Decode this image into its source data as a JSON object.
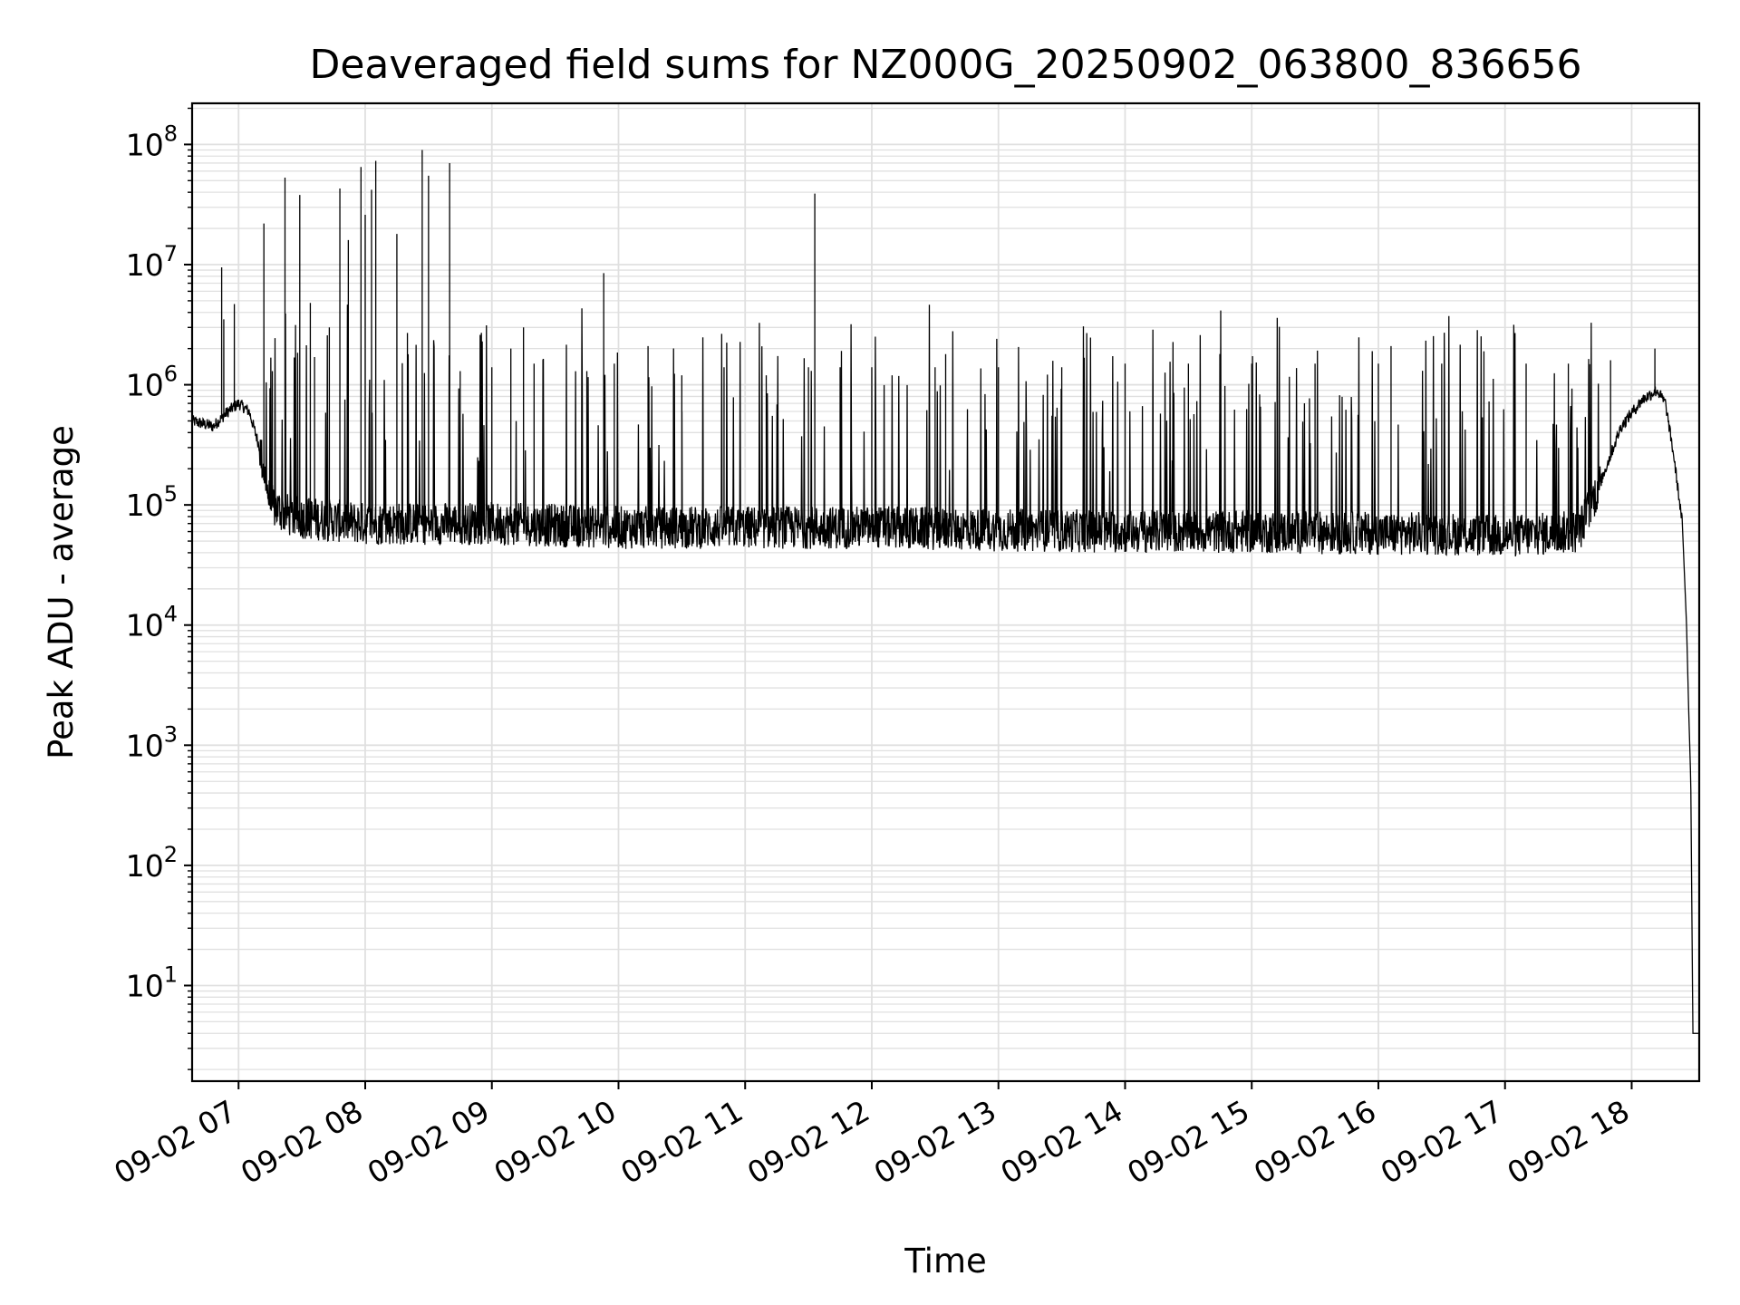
{
  "chart_data": {
    "type": "line",
    "title": "Deaveraged field sums for NZ000G_20250902_063800_836656",
    "xlabel": "Time",
    "ylabel": "Peak ADU - average",
    "yscale": "log",
    "ylim": [
      1.6,
      220000000.0
    ],
    "xlim": [
      "2025-09-02 06:38",
      "2025-09-02 18:32"
    ],
    "grid": true,
    "x_ticks": [
      {
        "time": "2025-09-02 07:00",
        "label": "09-02 07"
      },
      {
        "time": "2025-09-02 08:00",
        "label": "09-02 08"
      },
      {
        "time": "2025-09-02 09:00",
        "label": "09-02 09"
      },
      {
        "time": "2025-09-02 10:00",
        "label": "09-02 10"
      },
      {
        "time": "2025-09-02 11:00",
        "label": "09-02 11"
      },
      {
        "time": "2025-09-02 12:00",
        "label": "09-02 12"
      },
      {
        "time": "2025-09-02 13:00",
        "label": "09-02 13"
      },
      {
        "time": "2025-09-02 14:00",
        "label": "09-02 14"
      },
      {
        "time": "2025-09-02 15:00",
        "label": "09-02 15"
      },
      {
        "time": "2025-09-02 16:00",
        "label": "09-02 16"
      },
      {
        "time": "2025-09-02 17:00",
        "label": "09-02 17"
      },
      {
        "time": "2025-09-02 18:00",
        "label": "09-02 18"
      }
    ],
    "y_ticks": [
      {
        "value": 10,
        "base": "10",
        "exp": "1"
      },
      {
        "value": 100,
        "base": "10",
        "exp": "2"
      },
      {
        "value": 1000,
        "base": "10",
        "exp": "3"
      },
      {
        "value": 10000,
        "base": "10",
        "exp": "4"
      },
      {
        "value": 100000,
        "base": "10",
        "exp": "5"
      },
      {
        "value": 1000000,
        "base": "10",
        "exp": "6"
      },
      {
        "value": 10000000,
        "base": "10",
        "exp": "7"
      },
      {
        "value": 100000000,
        "base": "10",
        "exp": "8"
      }
    ],
    "series": [
      {
        "line_color": "#000000",
        "baseline": [
          [
            "2025-09-02 06:38",
            500000
          ],
          [
            "2025-09-02 06:48",
            450000
          ],
          [
            "2025-09-02 06:55",
            600000
          ],
          [
            "2025-09-02 07:00",
            700000
          ],
          [
            "2025-09-02 07:05",
            600000
          ],
          [
            "2025-09-02 07:10",
            300000
          ],
          [
            "2025-09-02 07:15",
            100000
          ],
          [
            "2025-09-02 07:25",
            80000
          ],
          [
            "2025-09-02 08:00",
            70000
          ],
          [
            "2025-09-02 09:00",
            70000
          ],
          [
            "2025-09-02 10:00",
            65000
          ],
          [
            "2025-09-02 11:00",
            65000
          ],
          [
            "2025-09-02 12:00",
            65000
          ],
          [
            "2025-09-02 13:00",
            62000
          ],
          [
            "2025-09-02 14:00",
            60000
          ],
          [
            "2025-09-02 15:00",
            60000
          ],
          [
            "2025-09-02 16:00",
            58000
          ],
          [
            "2025-09-02 16:30",
            58000
          ],
          [
            "2025-09-02 17:00",
            55000
          ],
          [
            "2025-09-02 17:35",
            60000
          ],
          [
            "2025-09-02 17:45",
            150000
          ],
          [
            "2025-09-02 17:55",
            450000
          ],
          [
            "2025-09-02 18:05",
            750000
          ],
          [
            "2025-09-02 18:12",
            900000
          ],
          [
            "2025-09-02 18:16",
            700000
          ],
          [
            "2025-09-02 18:20",
            250000
          ],
          [
            "2025-09-02 18:24",
            70000
          ],
          [
            "2025-09-02 18:26",
            10000
          ],
          [
            "2025-09-02 18:27",
            2000
          ],
          [
            "2025-09-02 18:28",
            500
          ],
          [
            "2025-09-02 18:29",
            4
          ],
          [
            "2025-09-02 18:32",
            4
          ]
        ],
        "spikes": [
          [
            "2025-09-02 06:52",
            9500000
          ],
          [
            "2025-09-02 06:53",
            3500000
          ],
          [
            "2025-09-02 06:58",
            4700000
          ],
          [
            "2025-09-02 07:12",
            22000000
          ],
          [
            "2025-09-02 07:16",
            1300000
          ],
          [
            "2025-09-02 07:22",
            53000000
          ],
          [
            "2025-09-02 07:29",
            38000000
          ],
          [
            "2025-09-02 07:34",
            4800000
          ],
          [
            "2025-09-02 07:36",
            1700000
          ],
          [
            "2025-09-02 07:43",
            3000000
          ],
          [
            "2025-09-02 07:48",
            43000000
          ],
          [
            "2025-09-02 07:52",
            16000000
          ],
          [
            "2025-09-02 07:58",
            65000000
          ],
          [
            "2025-09-02 08:00",
            26000000
          ],
          [
            "2025-09-02 08:03",
            42000000
          ],
          [
            "2025-09-02 08:05",
            73000000
          ],
          [
            "2025-09-02 08:15",
            18000000
          ],
          [
            "2025-09-02 08:20",
            2700000
          ],
          [
            "2025-09-02 08:27",
            90000000
          ],
          [
            "2025-09-02 08:30",
            55000000
          ],
          [
            "2025-09-02 08:40",
            70000000
          ],
          [
            "2025-09-02 08:45",
            1300000
          ],
          [
            "2025-09-02 09:00",
            1400000
          ],
          [
            "2025-09-02 09:09",
            2000000
          ],
          [
            "2025-09-02 09:15",
            3000000
          ],
          [
            "2025-09-02 09:20",
            1500000
          ],
          [
            "2025-09-02 09:45",
            1300000
          ],
          [
            "2025-09-02 09:53",
            8500000
          ],
          [
            "2025-09-02 09:58",
            1500000
          ],
          [
            "2025-09-02 10:14",
            2100000
          ],
          [
            "2025-09-02 10:30",
            1200000
          ],
          [
            "2025-09-02 10:50",
            1400000
          ],
          [
            "2025-09-02 11:10",
            1200000
          ],
          [
            "2025-09-02 11:30",
            1400000
          ],
          [
            "2025-09-02 11:33",
            39000000
          ],
          [
            "2025-09-02 11:45",
            1400000
          ],
          [
            "2025-09-02 12:00",
            1400000
          ],
          [
            "2025-09-02 12:30",
            1400000
          ],
          [
            "2025-09-02 12:35",
            1800000
          ],
          [
            "2025-09-02 13:00",
            1400000
          ],
          [
            "2025-09-02 13:30",
            1400000
          ],
          [
            "2025-09-02 14:00",
            1500000
          ],
          [
            "2025-09-02 14:30",
            1500000
          ],
          [
            "2025-09-02 15:00",
            1500000
          ],
          [
            "2025-09-02 15:30",
            1500000
          ],
          [
            "2025-09-02 16:00",
            1500000
          ],
          [
            "2025-09-02 16:06",
            2100000
          ],
          [
            "2025-09-02 16:30",
            1500000
          ],
          [
            "2025-09-02 16:50",
            1900000
          ],
          [
            "2025-09-02 17:10",
            1500000
          ],
          [
            "2025-09-02 17:30",
            1500000
          ],
          [
            "2025-09-02 17:50",
            1600000
          ],
          [
            "2025-09-02 18:11",
            2000000
          ]
        ]
      }
    ]
  }
}
